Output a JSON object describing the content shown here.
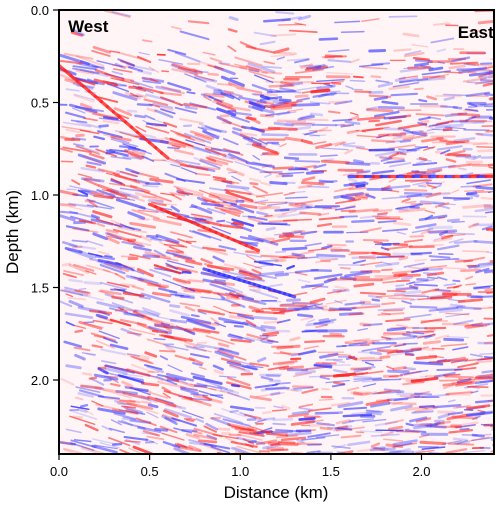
{
  "chart_data": {
    "type": "heatmap",
    "title": "",
    "xlabel": "Distance (km)",
    "ylabel": "Depth (km)",
    "xlim": [
      0.0,
      2.4
    ],
    "ylim": [
      0.0,
      2.4
    ],
    "y_inverted": true,
    "x_ticks": [
      0.0,
      0.5,
      1.0,
      1.5,
      2.0
    ],
    "x_tick_labels": [
      "0.0",
      "0.5",
      "1.0",
      "1.5",
      "2.0"
    ],
    "y_ticks": [
      0.0,
      0.5,
      1.0,
      1.5,
      2.0
    ],
    "y_tick_labels": [
      "0.0",
      "0.5",
      "1.0",
      "1.5",
      "2.0"
    ],
    "colormap": [
      "#3333ff",
      "#ffffff",
      "#ff2222"
    ],
    "grid": false,
    "annotations": [
      {
        "text": "West",
        "x": 0.05,
        "y": 0.12
      },
      {
        "text": "East",
        "x": 2.2,
        "y": 0.15
      }
    ],
    "strong_reflectors": [
      {
        "x0": 0.0,
        "y0": 0.3,
        "x1": 0.6,
        "y1": 0.8,
        "polarity": "positive"
      },
      {
        "x0": 0.5,
        "y0": 1.05,
        "x1": 1.1,
        "y1": 1.3,
        "polarity": "positive"
      },
      {
        "x0": 0.8,
        "y0": 1.4,
        "x1": 1.3,
        "y1": 1.55,
        "polarity": "negative"
      },
      {
        "x0": 1.6,
        "y0": 0.9,
        "x1": 2.4,
        "y1": 0.9,
        "polarity": "mixed"
      }
    ]
  }
}
